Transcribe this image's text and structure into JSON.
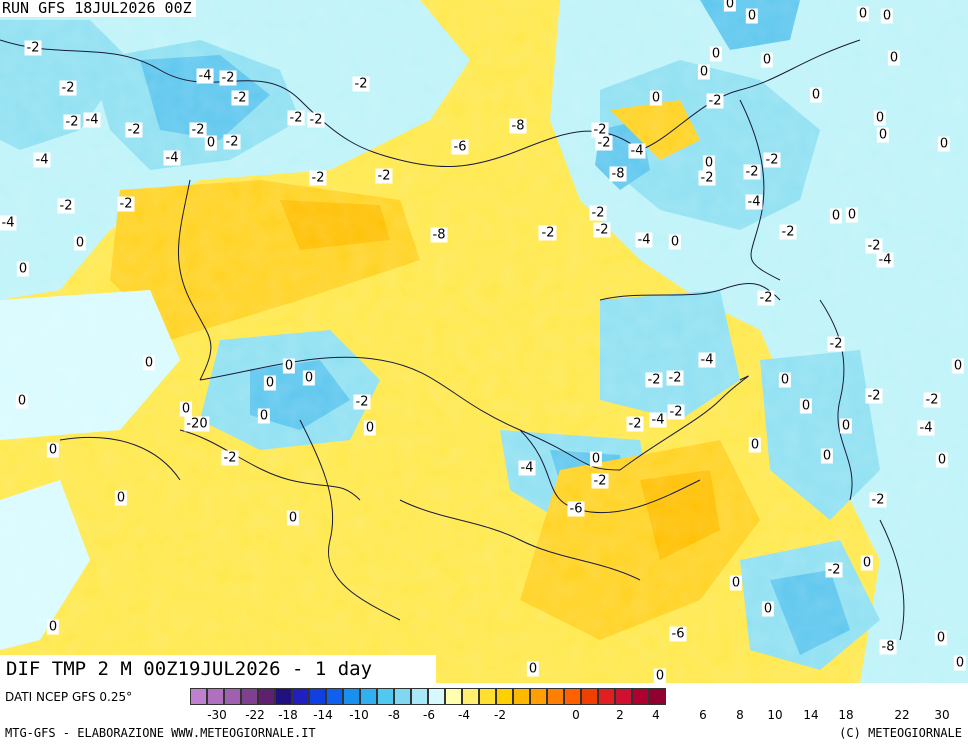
{
  "header": {
    "run_title": "RUN GFS 18JUL2026 00Z"
  },
  "map": {
    "title": "DIF TMP 2 M 00Z19JUL2026 - 1 day",
    "contour_labels": [
      "-2",
      "-2",
      "-4",
      "-4",
      "-2",
      "-2",
      "-2",
      "-2",
      "-4",
      "-2",
      "-2",
      "0",
      "-2",
      "-4",
      "-2",
      "-2",
      "-4",
      "-2",
      "-2",
      "-6",
      "-8",
      "-2",
      "-2",
      "-4",
      "-4",
      "-2",
      "-2",
      "-8",
      "-4",
      "-2",
      "0",
      "-2",
      "0",
      "0",
      "0",
      "0",
      "0",
      "0",
      "0",
      "0",
      "0",
      "0",
      "0",
      "0",
      "0",
      "-2",
      "-2",
      "-4",
      "-8",
      "-2",
      "-2",
      "0",
      "0",
      "-2",
      "-2",
      "-4",
      "-2",
      "-2",
      "-4",
      "-2",
      "-2",
      "-4",
      "-2",
      "-2",
      "0",
      "0",
      "0",
      "-2",
      "-4",
      "0",
      "0",
      "0",
      "-2",
      "0",
      "-2",
      "0",
      "0",
      "0",
      "-2",
      "-4",
      "-6",
      "-2",
      "0",
      "0",
      "0",
      "0",
      "-2",
      "0",
      "-2",
      "0",
      "-20",
      "0",
      "0",
      "0",
      "0",
      "0",
      "0",
      "-2",
      "-6",
      "-8",
      "0",
      "0",
      "0",
      "0",
      "0",
      "0",
      "0",
      "0",
      "-2",
      "0"
    ]
  },
  "legend": {
    "source": "DATI NCEP GFS 0.25°",
    "tick_labels": [
      "-30",
      "-22",
      "-18",
      "-14",
      "-10",
      "-8",
      "-6",
      "-4",
      "-2",
      "0",
      "2",
      "4",
      "6",
      "8",
      "10",
      "14",
      "18",
      "22",
      "30"
    ],
    "colors": [
      "#c080d0",
      "#b070c0",
      "#a060b0",
      "#804090",
      "#602070",
      "#201080",
      "#2020c0",
      "#1040e0",
      "#1060f0",
      "#1890f0",
      "#30b0f0",
      "#50c8f0",
      "#80d8f0",
      "#a8e8f8",
      "#d8f8ff",
      "#ffffb0",
      "#fff070",
      "#ffe030",
      "#ffd000",
      "#ffb800",
      "#ffa000",
      "#ff8000",
      "#ff6000",
      "#f04000",
      "#e02020",
      "#d01030",
      "#b00030",
      "#900030"
    ]
  },
  "footer": {
    "left": "MTG-GFS - ELABORAZIONE WWW.METEOGIORNALE.IT",
    "right": "(C) METEOGIORNALE"
  }
}
